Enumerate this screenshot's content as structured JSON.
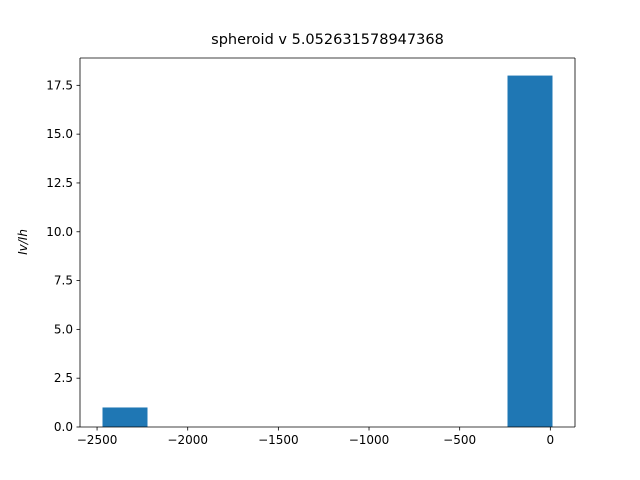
{
  "chart_data": {
    "type": "histogram",
    "title": "spheroid v 5.052631578947368",
    "ylabel": "Iv/Ih",
    "bins": [
      -2470,
      -2221.8,
      -1973.6,
      -1725.4,
      -1477.2,
      -1229,
      -980.8,
      -732.6,
      -484.4,
      -236.2,
      12
    ],
    "counts": [
      1,
      0,
      0,
      0,
      0,
      0,
      0,
      0,
      0,
      18
    ],
    "color": "#1f77b4",
    "xlim": [
      -2594.1,
      136.1
    ],
    "xticks": [
      {
        "value": -2500,
        "label": "−2500"
      },
      {
        "value": -2000,
        "label": "−2000"
      },
      {
        "value": -1500,
        "label": "−1500"
      },
      {
        "value": -1000,
        "label": "−1000"
      },
      {
        "value": -500,
        "label": "−500"
      },
      0
    ],
    "ylim": [
      0,
      18.9
    ],
    "yticks": [
      {
        "value": 0,
        "label": "0.0"
      },
      2.5,
      {
        "value": 5,
        "label": "5.0"
      },
      7.5,
      {
        "value": 10,
        "label": "10.0"
      },
      12.5,
      {
        "value": 15,
        "label": "15.0"
      },
      17.5
    ],
    "grid": false
  }
}
